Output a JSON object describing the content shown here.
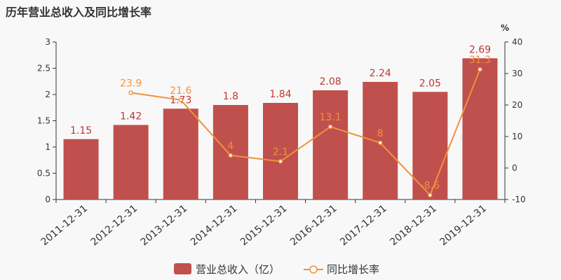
{
  "chart_data": {
    "type": "bar+line",
    "title": "历年营业总收入及同比增长率",
    "categories": [
      "2011-12-31",
      "2012-12-31",
      "2013-12-31",
      "2014-12-31",
      "2015-12-31",
      "2016-12-31",
      "2017-12-31",
      "2018-12-31",
      "2019-12-31"
    ],
    "series": [
      {
        "name": "营业总收入（亿）",
        "type": "bar",
        "axis": "left",
        "color": "#c0504d",
        "values": [
          1.15,
          1.42,
          1.73,
          1.8,
          1.84,
          2.08,
          2.24,
          2.05,
          2.69
        ]
      },
      {
        "name": "同比增长率",
        "type": "line",
        "axis": "right",
        "color": "#f0913f",
        "values": [
          null,
          23.9,
          21.6,
          4,
          2.1,
          13.1,
          8,
          -8.6,
          31.3
        ]
      }
    ],
    "yleft": {
      "min": 0,
      "max": 3,
      "ticks": [
        "0",
        "0.5",
        "1",
        "1.5",
        "2",
        "2.5",
        "3"
      ]
    },
    "yright": {
      "min": -10,
      "max": 40,
      "unit": "%",
      "ticks": [
        "-10",
        "0",
        "10",
        "20",
        "30",
        "40"
      ]
    },
    "legend_position": "bottom-center",
    "grid": false
  }
}
